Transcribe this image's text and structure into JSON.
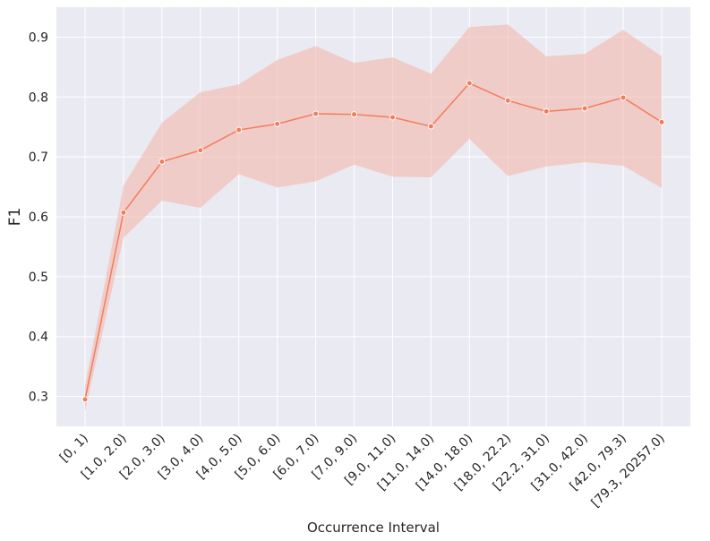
{
  "chart_data": {
    "type": "line",
    "xlabel": "Occurrence Interval",
    "ylabel": "F1",
    "categories": [
      "[0, 1)",
      "[1.0, 2.0)",
      "[2.0, 3.0)",
      "[3.0, 4.0)",
      "[4.0, 5.0)",
      "[5.0, 6.0)",
      "[6.0, 7.0)",
      "[7.0, 9.0)",
      "[9.0, 11.0)",
      "[11.0, 14.0)",
      "[14.0, 18.0)",
      "[18.0, 22.2)",
      "[22.2, 31.0)",
      "[31.0, 42.0)",
      "[42.0, 79.3)",
      "[79.3, 20257.0)"
    ],
    "series": [
      {
        "values": [
          0.295,
          0.607,
          0.692,
          0.711,
          0.745,
          0.755,
          0.772,
          0.771,
          0.766,
          0.751,
          0.823,
          0.794,
          0.776,
          0.781,
          0.799,
          0.758
        ],
        "lower": [
          0.275,
          0.565,
          0.627,
          0.615,
          0.671,
          0.649,
          0.659,
          0.687,
          0.667,
          0.666,
          0.73,
          0.668,
          0.684,
          0.691,
          0.685,
          0.648
        ],
        "upper": [
          0.318,
          0.652,
          0.757,
          0.808,
          0.821,
          0.862,
          0.885,
          0.857,
          0.866,
          0.839,
          0.917,
          0.921,
          0.868,
          0.872,
          0.912,
          0.868
        ]
      }
    ],
    "yticks": [
      "0.3",
      "0.4",
      "0.5",
      "0.6",
      "0.7",
      "0.8",
      "0.9"
    ],
    "ylim": [
      0.25,
      0.95
    ],
    "grid": true,
    "colors": {
      "line": "#f47c5a",
      "band": "#f3b8ad",
      "plot_bg": "#eaeaf2",
      "grid": "#ffffff"
    }
  }
}
